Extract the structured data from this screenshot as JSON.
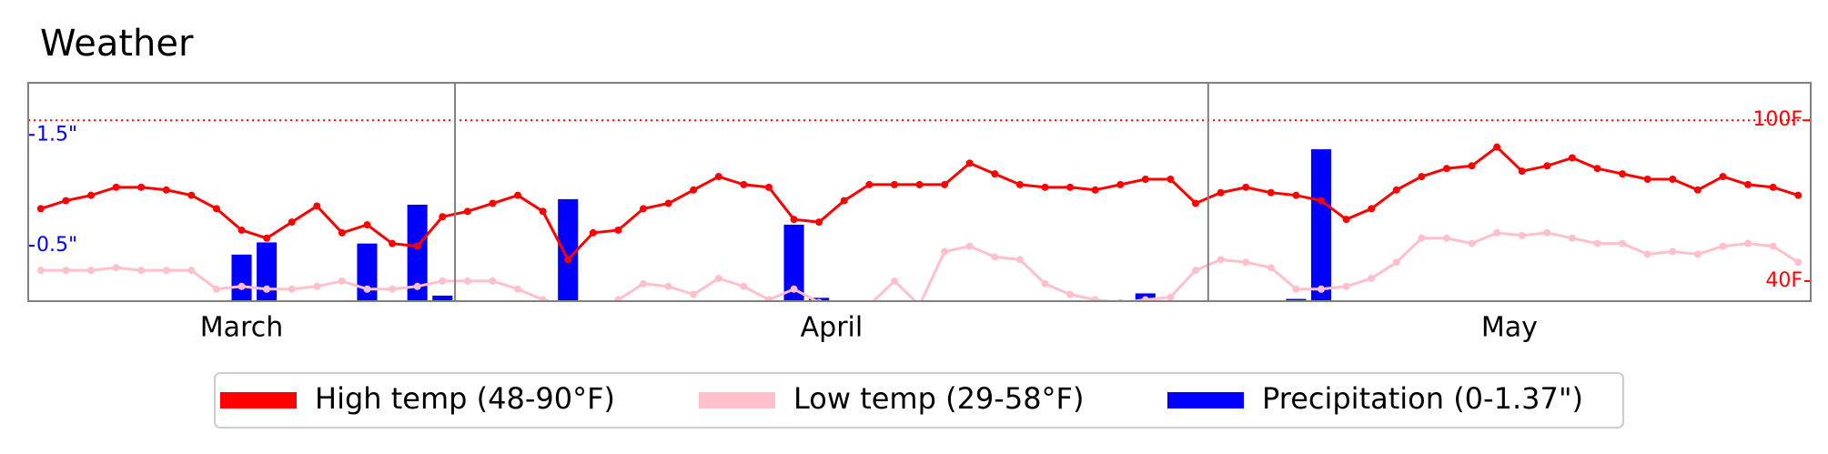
{
  "chart_data": {
    "type": "line",
    "title": "Weather",
    "categories": [
      "March",
      "March",
      "March",
      "March",
      "March",
      "March",
      "March",
      "March",
      "March",
      "March",
      "March",
      "March",
      "March",
      "March",
      "March",
      "March",
      "March",
      "April",
      "April",
      "April",
      "April",
      "April",
      "April",
      "April",
      "April",
      "April",
      "April",
      "April",
      "April",
      "April",
      "April",
      "April",
      "April",
      "April",
      "April",
      "April",
      "April",
      "April",
      "April",
      "April",
      "April",
      "April",
      "April",
      "April",
      "April",
      "April",
      "April",
      "May",
      "May",
      "May",
      "May",
      "May",
      "May",
      "May",
      "May",
      "May",
      "May",
      "May",
      "May",
      "May",
      "May",
      "May",
      "May",
      "May",
      "May",
      "May",
      "May",
      "May",
      "May",
      "May",
      "May"
    ],
    "series": [
      {
        "name": "High temp (48-90°F)",
        "type": "line",
        "color": "red",
        "axis": "y2",
        "values": [
          67,
          70,
          72,
          75,
          75,
          74,
          72,
          67,
          59,
          56,
          62,
          68,
          58,
          61,
          54,
          53,
          64,
          66,
          69,
          72,
          66,
          48,
          58,
          59,
          67,
          69,
          74,
          79,
          76,
          75,
          63,
          62,
          70,
          76,
          76,
          76,
          76,
          84,
          80,
          76,
          75,
          75,
          74,
          76,
          78,
          78,
          69,
          73,
          75,
          73,
          72,
          70,
          63,
          67,
          74,
          79,
          82,
          83,
          90,
          81,
          83,
          86,
          82,
          80,
          78,
          78,
          74,
          79,
          76,
          75,
          72
        ]
      },
      {
        "name": "Low temp (29-58°F)",
        "type": "line",
        "color": "pink",
        "axis": "y2",
        "values": [
          44,
          44,
          44,
          45,
          44,
          44,
          44,
          37,
          38,
          37,
          37,
          38,
          40,
          37,
          37,
          38,
          40,
          40,
          40,
          37,
          33,
          31,
          29,
          33,
          39,
          38,
          35,
          41,
          38,
          33,
          37,
          32,
          29,
          31,
          40,
          31,
          51,
          53,
          49,
          48,
          39,
          35,
          33,
          32,
          33,
          34,
          44,
          48,
          47,
          45,
          37,
          37,
          38,
          41,
          47,
          56,
          56,
          54,
          58,
          57,
          58,
          56,
          54,
          54,
          50,
          51,
          50,
          53,
          54,
          53,
          47
        ]
      },
      {
        "name": "Precipitation (0-1.37\")",
        "type": "bar",
        "color": "blue",
        "values": [
          0,
          0,
          0,
          0,
          0,
          0,
          0,
          0,
          0.42,
          0.53,
          0,
          0,
          0,
          0.52,
          0,
          0.87,
          0.05,
          0,
          0,
          0,
          0,
          0.92,
          0,
          0,
          0,
          0,
          0,
          0,
          0,
          0,
          0.69,
          0.03,
          0,
          0,
          0,
          0,
          0,
          0,
          0,
          0,
          0,
          0,
          0,
          0,
          0.07,
          0,
          0,
          0,
          0,
          0,
          0.02,
          1.37,
          0,
          0,
          0,
          0,
          0,
          0,
          0,
          0,
          0,
          0,
          0,
          0,
          0,
          0,
          0,
          0,
          0,
          0,
          0
        ]
      }
    ],
    "ylim": [
      0,
      1.97
    ],
    "yticks": [
      {
        "value": 0.5,
        "label": "0.5\""
      },
      {
        "value": 1.5,
        "label": "1.5\""
      }
    ],
    "y2lim": [
      32.5,
      114
    ],
    "y2ticks": [
      {
        "value": 40,
        "label": "40F"
      },
      {
        "value": 100,
        "label": "100F"
      }
    ],
    "hline": {
      "value": 100,
      "color": "red"
    },
    "legend": "bottom"
  }
}
